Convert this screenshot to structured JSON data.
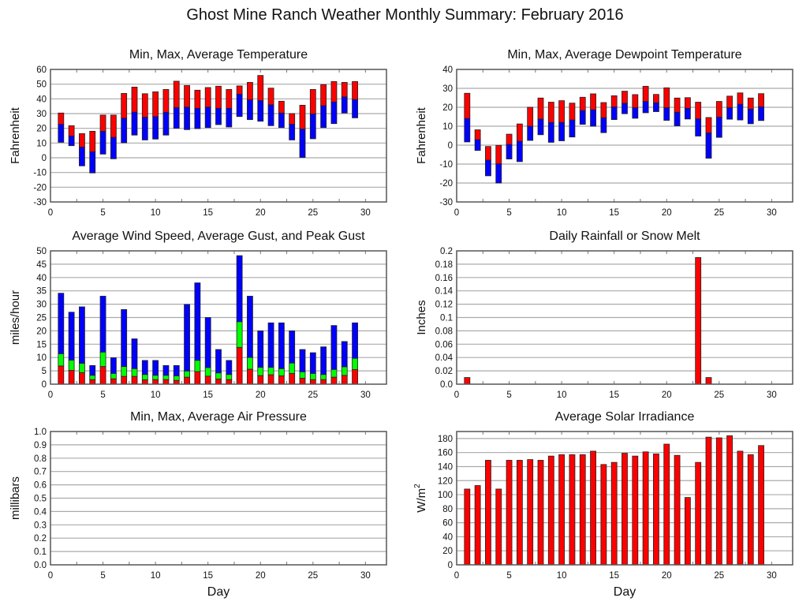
{
  "title": "Ghost Mine Ranch Weather Monthly Summary: February 2016",
  "colors": {
    "red": "#ff0000",
    "blue": "#0000ff",
    "green": "#00ff00",
    "grid": "#aaaaaa",
    "frame": "#555555"
  },
  "chart_data": [
    {
      "id": "temperature",
      "type": "bar",
      "subtype": "floating-range-stacked",
      "title": "Min, Max, Average Temperature",
      "xlabel": "",
      "ylabel": "Fahrenheit",
      "xlim": [
        0,
        32
      ],
      "ylim": [
        -30,
        60
      ],
      "xticks": [
        0,
        5,
        10,
        15,
        20,
        25,
        30
      ],
      "yticks": [
        -30,
        -20,
        -10,
        0,
        10,
        20,
        30,
        40,
        50,
        60
      ],
      "grid": true,
      "x": [
        1,
        2,
        3,
        4,
        5,
        6,
        7,
        8,
        9,
        10,
        11,
        12,
        13,
        14,
        15,
        16,
        17,
        18,
        19,
        20,
        21,
        22,
        23,
        24,
        25,
        26,
        27,
        28,
        29
      ],
      "series": [
        {
          "name": "Min",
          "color": "blue",
          "values": [
            10.5,
            8.2,
            -5.5,
            -10.3,
            2.5,
            -0.7,
            10.2,
            15.4,
            12.1,
            12.7,
            15.4,
            20.0,
            19.1,
            19.8,
            20.5,
            22.5,
            20.9,
            28.0,
            25.9,
            24.8,
            21.8,
            20.5,
            12.1,
            0.2,
            12.9,
            20.5,
            23.2,
            30.4,
            27.1
          ]
        },
        {
          "name": "Average",
          "color": "boundary",
          "values": [
            22.7,
            14.8,
            7.3,
            4.1,
            18.0,
            13.9,
            26.9,
            31.0,
            27.6,
            28.0,
            30.9,
            34.1,
            34.4,
            33.6,
            34.4,
            33.6,
            33.6,
            43.2,
            39.4,
            38.9,
            36.0,
            30.4,
            22.8,
            19.6,
            29.8,
            35.4,
            37.9,
            41.4,
            39.6
          ]
        },
        {
          "name": "Max",
          "color": "red",
          "values": [
            30.4,
            21.8,
            16.4,
            18.0,
            29.0,
            29.0,
            43.7,
            48.0,
            43.5,
            44.8,
            46.4,
            52.0,
            49.1,
            45.9,
            47.7,
            48.6,
            46.4,
            48.8,
            51.2,
            55.9,
            47.3,
            38.4,
            30.0,
            35.7,
            46.4,
            49.7,
            51.8,
            51.2,
            51.8
          ]
        }
      ]
    },
    {
      "id": "dewpoint",
      "type": "bar",
      "subtype": "floating-range-stacked",
      "title": "Min, Max, Average Dewpoint Temperature",
      "xlabel": "",
      "ylabel": "Fahrenheit",
      "xlim": [
        0,
        32
      ],
      "ylim": [
        -30,
        40
      ],
      "xticks": [
        0,
        5,
        10,
        15,
        20,
        25,
        30
      ],
      "yticks": [
        -30,
        -20,
        -10,
        0,
        10,
        20,
        30,
        40
      ],
      "grid": true,
      "x": [
        1,
        2,
        3,
        4,
        5,
        6,
        7,
        8,
        9,
        10,
        11,
        12,
        13,
        14,
        15,
        16,
        17,
        18,
        19,
        20,
        21,
        22,
        23,
        24,
        25,
        26,
        27,
        28,
        29
      ],
      "series": [
        {
          "name": "Min",
          "color": "blue",
          "values": [
            1.7,
            -2.8,
            -16.2,
            -20.0,
            -7.3,
            -8.7,
            2.5,
            5.5,
            1.5,
            2.3,
            4.3,
            11.0,
            10.0,
            6.6,
            13.5,
            16.6,
            14.2,
            17.1,
            17.7,
            13.1,
            10.2,
            13.8,
            4.8,
            -6.9,
            4.1,
            13.7,
            13.3,
            11.3,
            13.0
          ]
        },
        {
          "name": "Average",
          "color": "boundary",
          "values": [
            14.1,
            2.9,
            -7.9,
            -9.8,
            0.4,
            2.1,
            10.0,
            13.8,
            12.0,
            12.0,
            13.3,
            18.3,
            18.7,
            14.5,
            20.2,
            22.1,
            19.8,
            23.1,
            22.4,
            19.8,
            17.4,
            19.5,
            13.9,
            6.5,
            14.8,
            19.8,
            21.6,
            19.1,
            20.3
          ]
        },
        {
          "name": "Max",
          "color": "red",
          "values": [
            27.4,
            8.1,
            -0.7,
            -0.1,
            5.8,
            11.2,
            20.0,
            24.9,
            22.7,
            23.5,
            22.2,
            25.3,
            27.1,
            22.5,
            26.1,
            28.5,
            26.7,
            31.1,
            26.8,
            30.3,
            24.9,
            25.1,
            22.7,
            14.6,
            23.1,
            25.9,
            27.6,
            24.9,
            27.2
          ]
        }
      ]
    },
    {
      "id": "wind",
      "type": "bar",
      "subtype": "stacked-overlay",
      "title": "Average Wind Speed, Average Gust, and Peak Gust",
      "xlabel": "",
      "ylabel": "miles/hour",
      "xlim": [
        0,
        32
      ],
      "ylim": [
        0,
        50
      ],
      "xticks": [
        0,
        5,
        10,
        15,
        20,
        25,
        30
      ],
      "yticks": [
        0,
        5,
        10,
        15,
        20,
        25,
        30,
        35,
        40,
        45,
        50
      ],
      "grid": true,
      "x": [
        1,
        2,
        3,
        4,
        5,
        6,
        7,
        8,
        9,
        10,
        11,
        12,
        13,
        14,
        15,
        16,
        17,
        18,
        19,
        20,
        21,
        22,
        23,
        24,
        25,
        26,
        27,
        28,
        29
      ],
      "series": [
        {
          "name": "Peak Gust",
          "color": "blue",
          "values": [
            34.1,
            27.0,
            29.0,
            7.0,
            33.0,
            9.9,
            28.0,
            17.0,
            8.9,
            8.9,
            7.0,
            7.0,
            29.9,
            38.0,
            25.0,
            13.0,
            8.9,
            48.2,
            33.0,
            20.0,
            23.0,
            23.0,
            20.0,
            13.0,
            11.8,
            14.0,
            22.0,
            16.0,
            23.0
          ]
        },
        {
          "name": "Average Gust",
          "color": "green",
          "values": [
            11.4,
            9.0,
            7.8,
            3.3,
            12.0,
            4.0,
            6.6,
            5.8,
            3.6,
            3.3,
            3.3,
            3.1,
            4.9,
            8.9,
            6.2,
            4.2,
            3.6,
            23.4,
            10.0,
            6.3,
            6.3,
            5.8,
            7.9,
            4.6,
            4.0,
            3.6,
            5.5,
            6.5,
            9.7
          ]
        },
        {
          "name": "Average Wind Speed",
          "color": "red",
          "values": [
            6.8,
            5.2,
            4.3,
            1.7,
            6.6,
            2.0,
            2.9,
            2.9,
            1.6,
            1.7,
            1.7,
            1.4,
            2.6,
            4.7,
            3.0,
            1.9,
            1.7,
            13.8,
            5.6,
            3.2,
            3.5,
            3.1,
            4.0,
            2.2,
            1.7,
            1.7,
            2.6,
            3.3,
            5.5
          ]
        }
      ]
    },
    {
      "id": "rainfall",
      "type": "bar",
      "title": "Daily Rainfall or Snow Melt",
      "xlabel": "",
      "ylabel": "Inches",
      "xlim": [
        0,
        32
      ],
      "ylim": [
        0,
        0.2
      ],
      "xticks": [
        0,
        5,
        10,
        15,
        20,
        25,
        30
      ],
      "yticks": [
        "0.0",
        "0.02",
        "0.04",
        "0.06",
        "0.08",
        "0.1",
        "0.12",
        "0.14",
        "0.16",
        "0.18",
        "0.2"
      ],
      "grid": true,
      "x": [
        1,
        2,
        3,
        4,
        5,
        6,
        7,
        8,
        9,
        10,
        11,
        12,
        13,
        14,
        15,
        16,
        17,
        18,
        19,
        20,
        21,
        22,
        23,
        24,
        25,
        26,
        27,
        28,
        29
      ],
      "series": [
        {
          "name": "Rainfall",
          "color": "red",
          "values": [
            0.01,
            0,
            0,
            0,
            0,
            0,
            0,
            0,
            0,
            0,
            0,
            0,
            0,
            0,
            0,
            0,
            0,
            0,
            0,
            0,
            0,
            0,
            0.19,
            0.01,
            0,
            0,
            0,
            0,
            0
          ]
        }
      ]
    },
    {
      "id": "pressure",
      "type": "bar",
      "title": "Min, Max, Average Air Pressure",
      "xlabel": "Day",
      "ylabel": "millibars",
      "xlim": [
        0,
        32
      ],
      "ylim": [
        0,
        1
      ],
      "xticks": [
        0,
        5,
        10,
        15,
        20,
        25,
        30
      ],
      "yticks": [
        "0.0",
        "0.1",
        "0.2",
        "0.3",
        "0.4",
        "0.5",
        "0.6",
        "0.7",
        "0.8",
        "0.9",
        "1.0"
      ],
      "grid": true,
      "x": [],
      "series": []
    },
    {
      "id": "solar",
      "type": "bar",
      "title": "Average Solar Irradiance",
      "xlabel": "Day",
      "ylabel": "W/m",
      "ylabel_superscript": "2",
      "xlim": [
        0,
        32
      ],
      "ylim": [
        0,
        190
      ],
      "xticks": [
        0,
        5,
        10,
        15,
        20,
        25,
        30
      ],
      "yticks": [
        0,
        20,
        40,
        60,
        80,
        100,
        120,
        140,
        160,
        180
      ],
      "grid": true,
      "x": [
        1,
        2,
        3,
        4,
        5,
        6,
        7,
        8,
        9,
        10,
        11,
        12,
        13,
        14,
        15,
        16,
        17,
        18,
        19,
        20,
        21,
        22,
        23,
        24,
        25,
        26,
        27,
        28,
        29
      ],
      "series": [
        {
          "name": "Solar Irradiance",
          "color": "red",
          "values": [
            108,
            113,
            149,
            108,
            149,
            149,
            150,
            149,
            155,
            157,
            157,
            157,
            162,
            143,
            146,
            159,
            155,
            161,
            158,
            172,
            156,
            96,
            146,
            182,
            181,
            184,
            162,
            157,
            170
          ]
        }
      ]
    }
  ]
}
